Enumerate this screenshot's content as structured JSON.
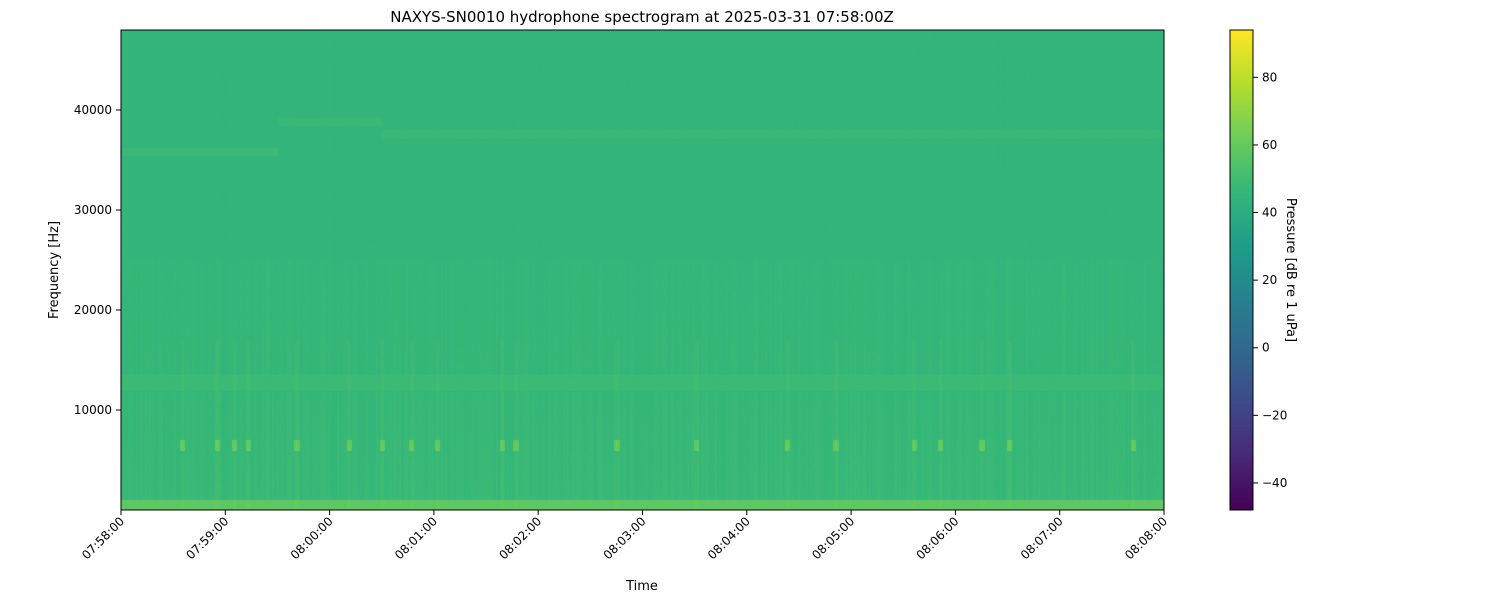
{
  "chart_data": {
    "type": "heatmap",
    "title": "NAXYS-SN0010 hydrophone spectrogram at 2025-03-31 07:58:00Z",
    "xlabel": "Time",
    "ylabel": "Frequency [Hz]",
    "xlim": [
      "07:58:00",
      "08:08:00"
    ],
    "ylim": [
      0,
      48000
    ],
    "x_ticks": [
      "07:58:00",
      "07:59:00",
      "08:00:00",
      "08:01:00",
      "08:02:00",
      "08:03:00",
      "08:04:00",
      "08:05:00",
      "08:06:00",
      "08:07:00",
      "08:08:00"
    ],
    "y_ticks": [
      10000,
      20000,
      30000,
      40000
    ],
    "colormap": "viridis",
    "colorbar": {
      "label": "Pressure [dB re 1 uPa]",
      "range": [
        -48,
        94
      ],
      "ticks": [
        -40,
        -20,
        0,
        20,
        40,
        60,
        80
      ]
    },
    "background_level_db": 44,
    "bands": [
      {
        "freq_range_hz": [
          0,
          1000
        ],
        "level_db": 58,
        "time_range": [
          "07:58:00",
          "08:08:00"
        ]
      },
      {
        "freq_range_hz": [
          12000,
          13500
        ],
        "level_db": 48,
        "time_range": [
          "07:58:00",
          "08:08:00"
        ]
      },
      {
        "freq_range_hz": [
          35500,
          36200
        ],
        "level_db": 48,
        "time_range": [
          "07:58:00",
          "07:59:30"
        ]
      },
      {
        "freq_range_hz": [
          38500,
          39200
        ],
        "level_db": 47,
        "time_range": [
          "07:59:30",
          "08:00:30"
        ]
      },
      {
        "freq_range_hz": [
          37200,
          38000
        ],
        "level_db": 47,
        "time_range": [
          "08:00:30",
          "08:08:00"
        ]
      }
    ],
    "bursts": {
      "freq_range_hz": [
        6000,
        7000
      ],
      "level_db": 62,
      "times": [
        "07:58:35",
        "07:58:55",
        "07:59:05",
        "07:59:13",
        "07:59:41",
        "08:00:11",
        "08:00:30",
        "08:00:47",
        "08:01:02",
        "08:01:39",
        "08:01:47",
        "08:02:45",
        "08:03:31",
        "08:04:23",
        "08:04:51",
        "08:05:36",
        "08:05:51",
        "08:06:15",
        "08:06:31",
        "08:07:42"
      ]
    }
  }
}
